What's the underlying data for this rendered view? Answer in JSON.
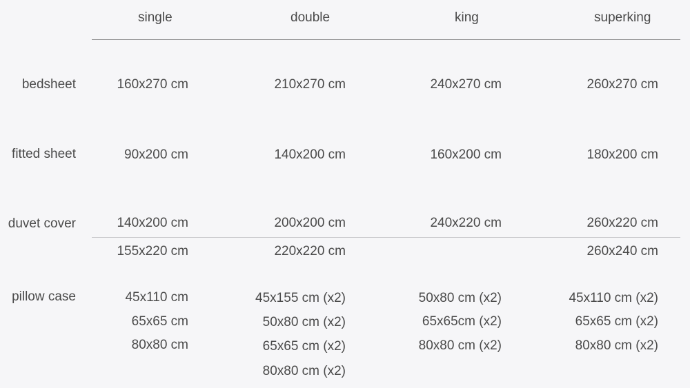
{
  "headers": [
    "single",
    "double",
    "king",
    "superking"
  ],
  "rows": {
    "bedsheet": {
      "label": "bedsheet",
      "values": [
        "160x270 cm",
        "210x270 cm",
        "240x270 cm",
        "260x270 cm"
      ]
    },
    "fitted_sheet": {
      "label": "fitted sheet",
      "values": [
        "90x200 cm",
        "140x200 cm",
        "160x200 cm",
        "180x200 cm"
      ]
    },
    "duvet_cover": {
      "label": "duvet cover",
      "values": [
        "140x200 cm",
        "200x200 cm",
        "240x220 cm",
        "260x220 cm"
      ]
    },
    "duvet_cover_alt": {
      "values": [
        "155x220 cm",
        "220x220 cm",
        "",
        "260x240 cm"
      ]
    },
    "pillow_case": {
      "label": "pillow case",
      "single": [
        "45x110 cm",
        "65x65 cm",
        "80x80 cm"
      ],
      "double": [
        "45x155 cm (x2)",
        "50x80 cm (x2)",
        "65x65 cm (x2)",
        "80x80 cm (x2)"
      ],
      "king": [
        "50x80 cm (x2)",
        "65x65cm (x2)",
        "80x80 cm (x2)"
      ],
      "superking": [
        "45x110 cm (x2)",
        "65x65 cm (x2)",
        "80x80 cm (x2)"
      ]
    }
  }
}
